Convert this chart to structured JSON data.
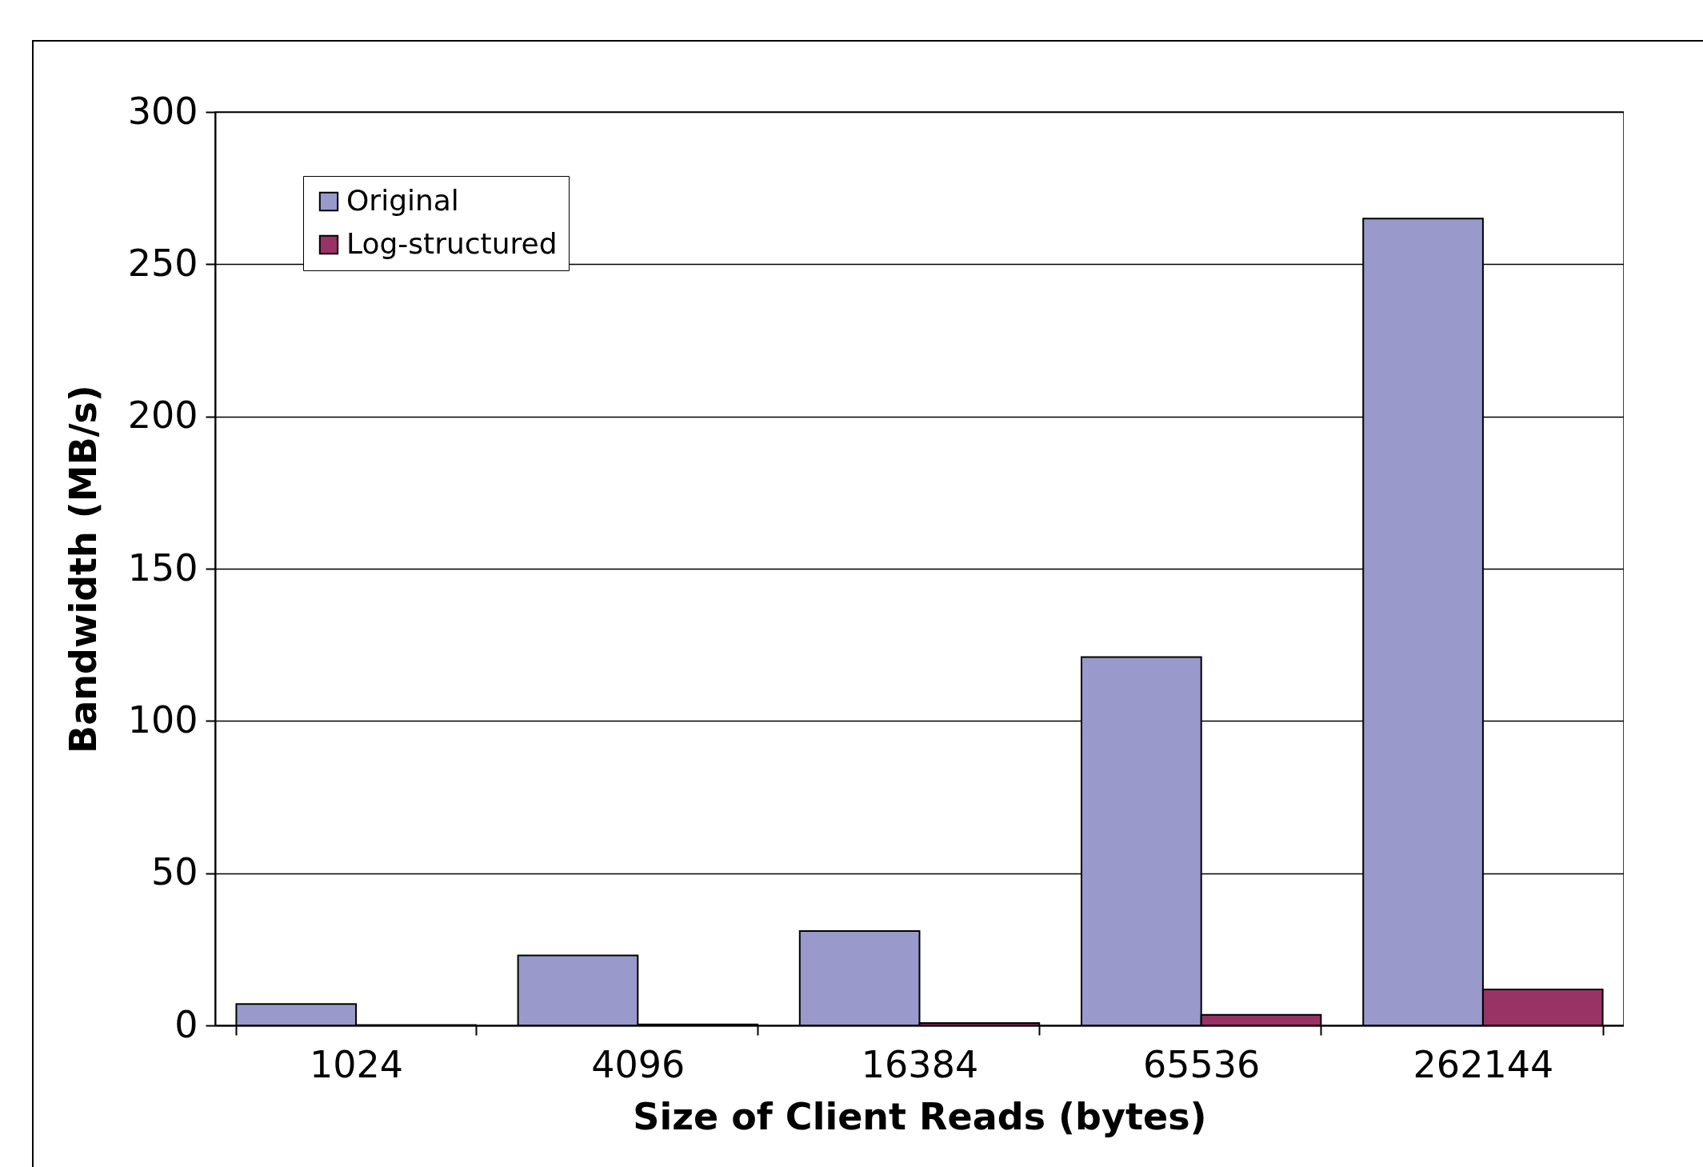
{
  "chart_data": {
    "type": "bar",
    "xlabel": "Size of Client Reads (bytes)",
    "ylabel": "Bandwidth (MB/s)",
    "categories": [
      "1024",
      "4096",
      "16384",
      "65536",
      "262144"
    ],
    "series": [
      {
        "name": "Original",
        "color": "#9999cc",
        "values": [
          7,
          23,
          31,
          121,
          265
        ]
      },
      {
        "name": "Log-structured",
        "color": "#993366",
        "values": [
          0.1,
          0.3,
          0.8,
          3.5,
          11.8
        ]
      }
    ],
    "ylim": [
      0,
      300
    ],
    "yticks": [
      0,
      50,
      100,
      150,
      200,
      250,
      300
    ],
    "grid": "y",
    "legend": "top left"
  }
}
